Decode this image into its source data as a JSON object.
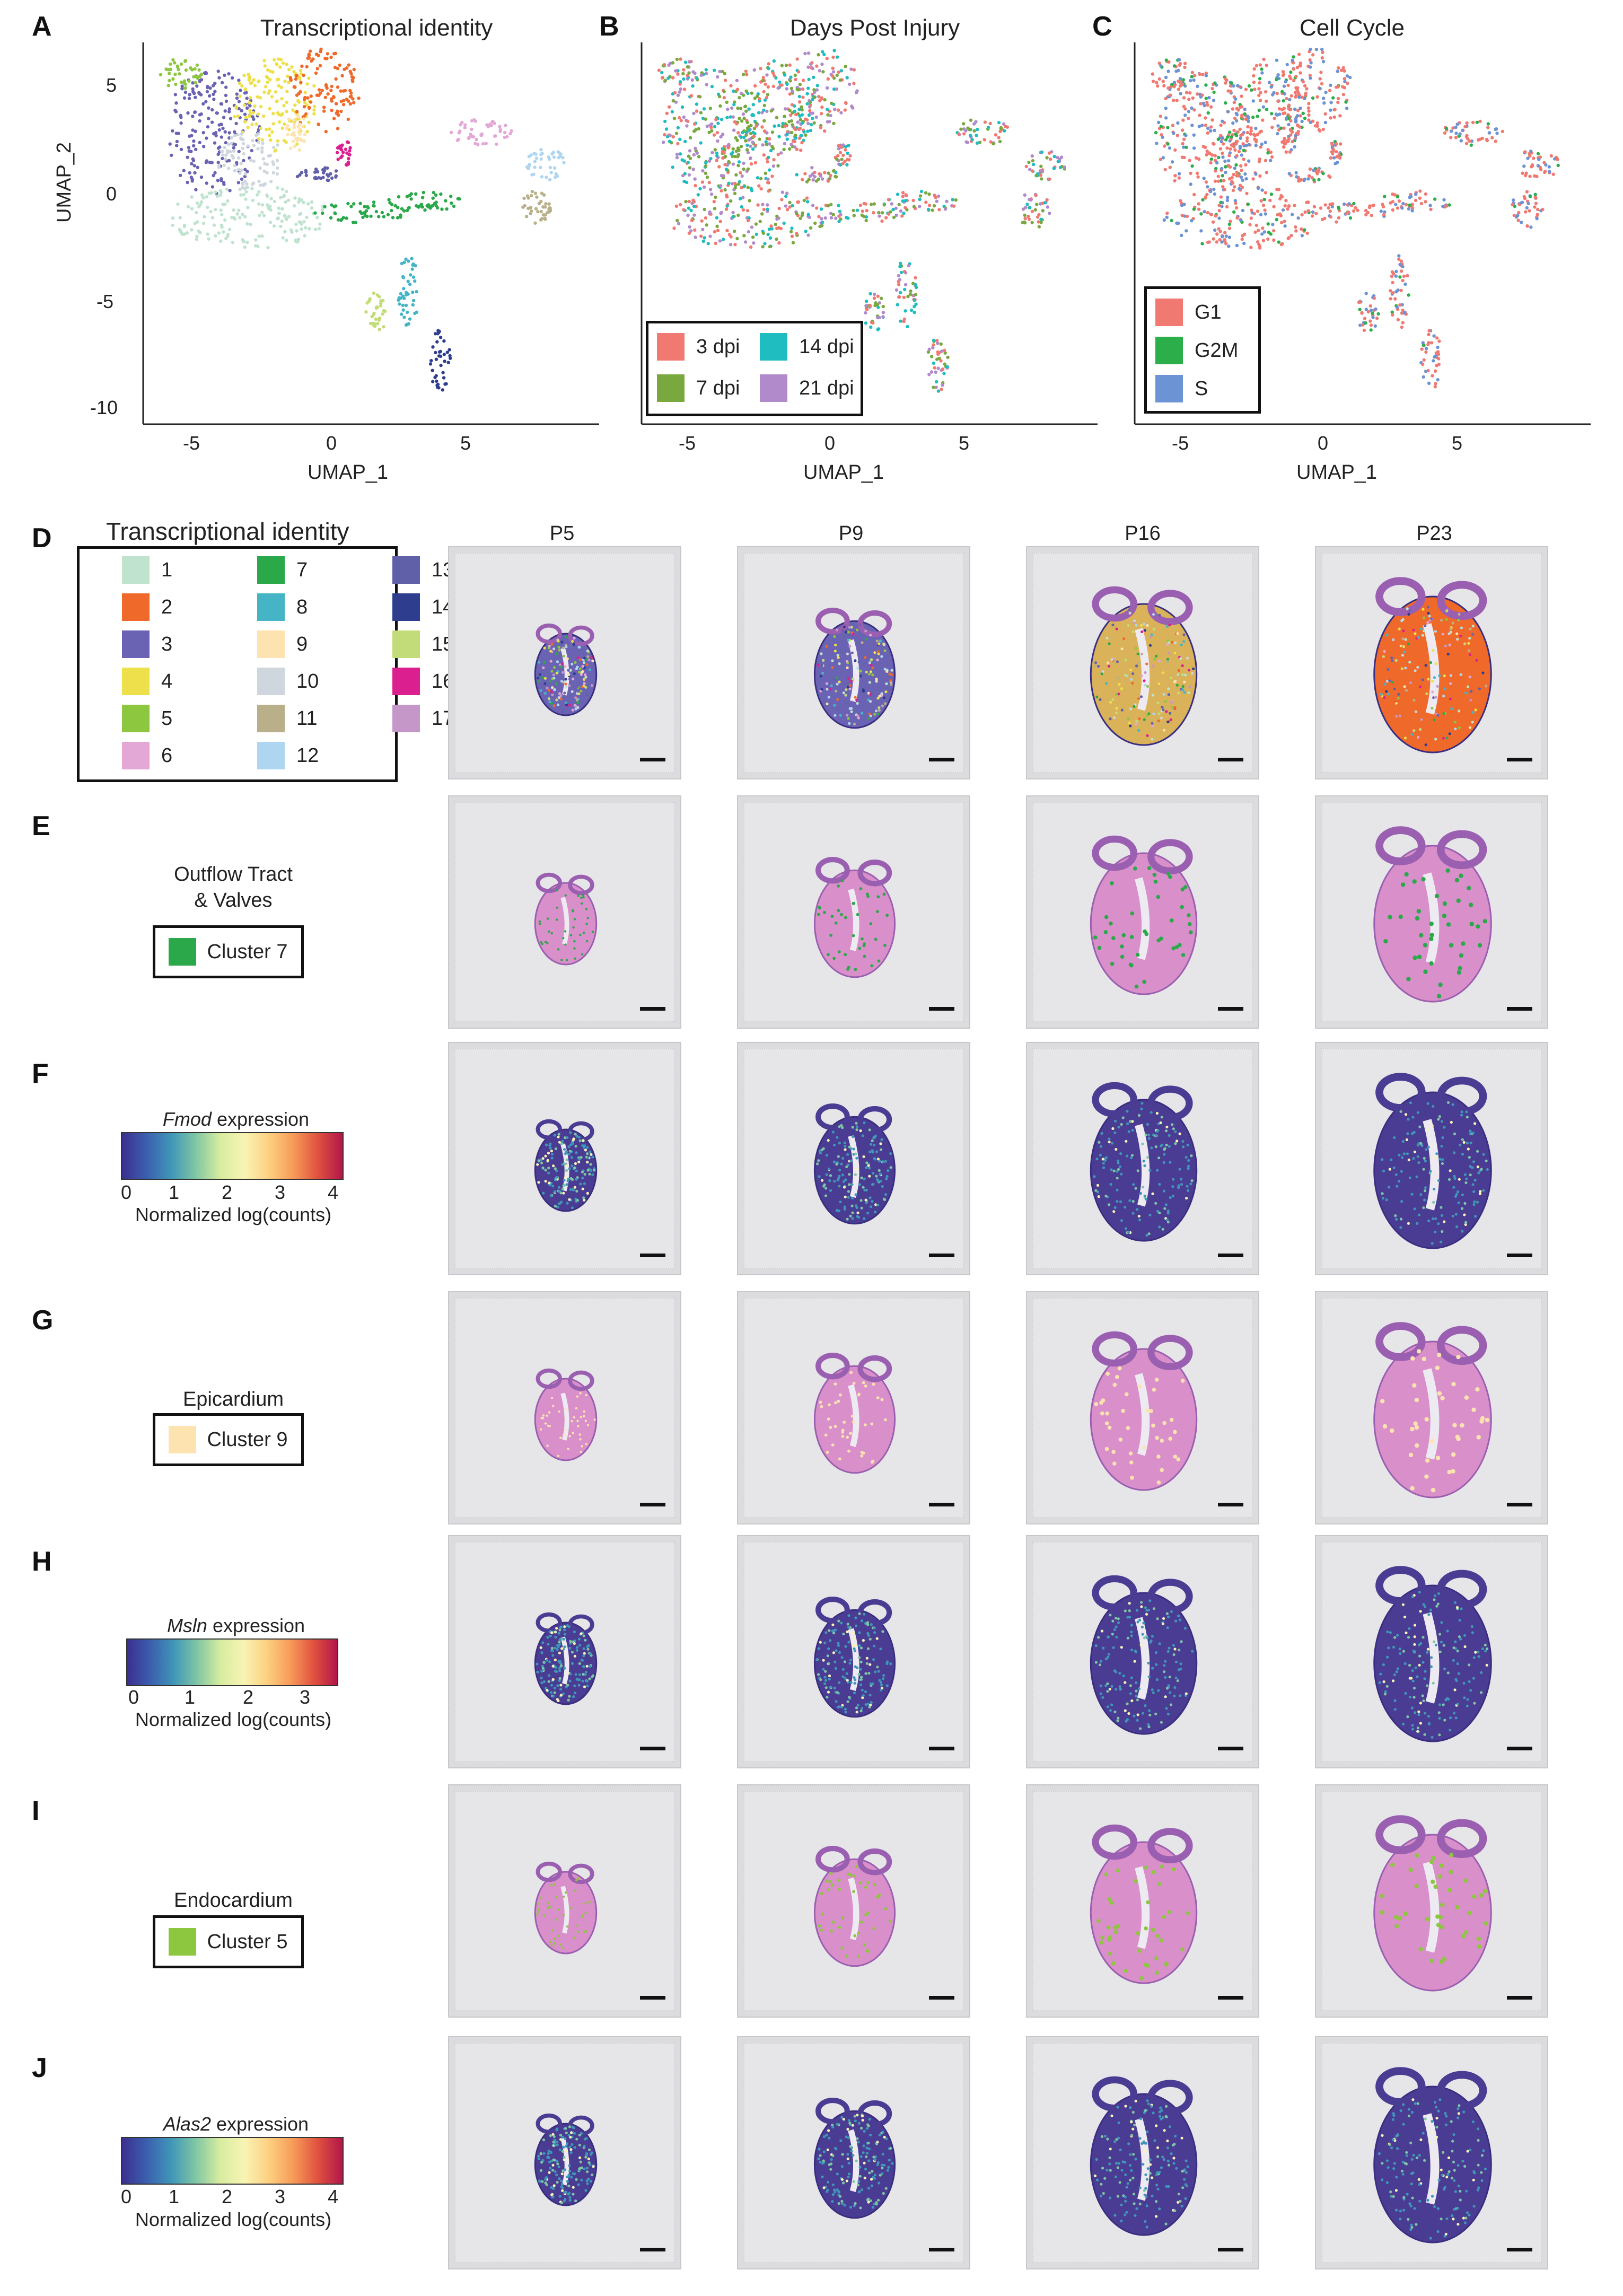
{
  "panels": {
    "A": {
      "letter": "A",
      "title": "Transcriptional identity",
      "xlabel": "UMAP_1",
      "ylabel": "UMAP_2",
      "xticks": [
        "-5",
        "0",
        "5"
      ],
      "yticks": [
        "5",
        "0",
        "-5",
        "-10"
      ]
    },
    "B": {
      "letter": "B",
      "title": "Days Post Injury",
      "xlabel": "UMAP_1",
      "xticks": [
        "-5",
        "0",
        "5"
      ],
      "legend": [
        {
          "label": "3 dpi",
          "color": "#f07a72"
        },
        {
          "label": "14 dpi",
          "color": "#1fbcc0"
        },
        {
          "label": "7 dpi",
          "color": "#79a83f"
        },
        {
          "label": "21 dpi",
          "color": "#b08acb"
        }
      ]
    },
    "C": {
      "letter": "C",
      "title": "Cell Cycle",
      "xlabel": "UMAP_1",
      "xticks": [
        "-5",
        "0",
        "5"
      ],
      "legend": [
        {
          "label": "G1",
          "color": "#f07a72"
        },
        {
          "label": "G2M",
          "color": "#2cae4a"
        },
        {
          "label": "S",
          "color": "#6c93d4"
        }
      ]
    },
    "D": {
      "letter": "D",
      "legend_title": "Transcriptional identity",
      "clusters": [
        {
          "label": "1",
          "color": "#bfe3cf"
        },
        {
          "label": "2",
          "color": "#ef6a2a"
        },
        {
          "label": "3",
          "color": "#6a63b3"
        },
        {
          "label": "4",
          "color": "#ede04a"
        },
        {
          "label": "5",
          "color": "#8dc63f"
        },
        {
          "label": "6",
          "color": "#e4a8d6"
        },
        {
          "label": "7",
          "color": "#2aa84a"
        },
        {
          "label": "8",
          "color": "#45b5c6"
        },
        {
          "label": "9",
          "color": "#fde3b0"
        },
        {
          "label": "10",
          "color": "#cfd6de"
        },
        {
          "label": "11",
          "color": "#b9b08a"
        },
        {
          "label": "12",
          "color": "#afd6f0"
        },
        {
          "label": "13",
          "color": "#6060a8"
        },
        {
          "label": "14",
          "color": "#2e3d8e"
        },
        {
          "label": "15",
          "color": "#c2dc7a"
        },
        {
          "label": "16",
          "color": "#dc1f8e"
        },
        {
          "label": "17",
          "color": "#c497c8"
        }
      ],
      "columns": [
        "P5",
        "P9",
        "P16",
        "P23"
      ]
    },
    "E": {
      "letter": "E",
      "label_line1": "Outflow Tract",
      "label_line2": "& Valves",
      "cluster_label": "Cluster 7",
      "cluster_color": "#2aa84a"
    },
    "F": {
      "letter": "F",
      "gene": "Fmod",
      "suffix": " expression",
      "ticks": [
        "0",
        "1",
        "2",
        "3",
        "4"
      ],
      "sublabel": "Normalized log(counts)"
    },
    "G": {
      "letter": "G",
      "label_line1": "Epicardium",
      "cluster_label": "Cluster 9",
      "cluster_color": "#fde3b0"
    },
    "H": {
      "letter": "H",
      "gene": "Msln",
      "suffix": " expression",
      "ticks": [
        "0",
        "1",
        "2",
        "3"
      ],
      "sublabel": "Normalized log(counts)"
    },
    "I": {
      "letter": "I",
      "label_line1": "Endocardium",
      "cluster_label": "Cluster 5",
      "cluster_color": "#8dc63f"
    },
    "J": {
      "letter": "J",
      "gene": "Alas2",
      "suffix": " expression",
      "ticks": [
        "0",
        "1",
        "2",
        "3",
        "4"
      ],
      "sublabel": "Normalized log(counts)"
    }
  },
  "colors": {
    "he_pink": "#d98fc9",
    "he_dark": "#9a5fb0",
    "expr_low": "#4a3c93"
  }
}
